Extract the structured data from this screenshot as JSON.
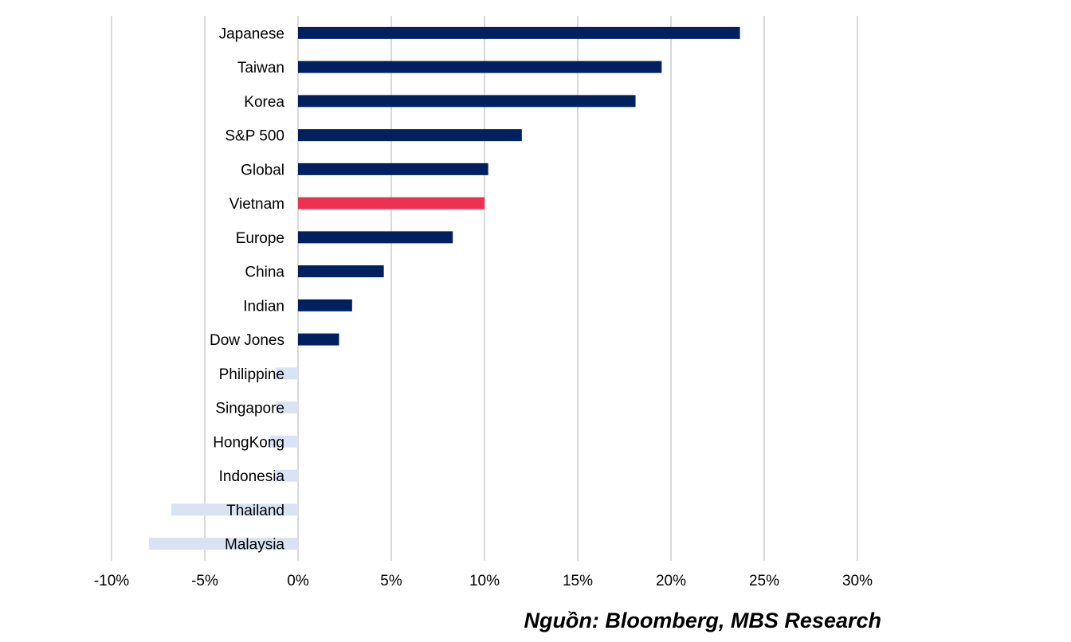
{
  "chart_data": {
    "type": "bar",
    "orientation": "horizontal",
    "categories": [
      "Japanese",
      "Taiwan",
      "Korea",
      "S&P 500",
      "Global",
      "Vietnam",
      "Europe",
      "China",
      "Indian",
      "Dow Jones",
      "Philippine",
      "Singapore",
      "HongKong",
      "Indonesia",
      "Thailand",
      "Malaysia"
    ],
    "values": [
      23.7,
      19.5,
      18.1,
      12.0,
      10.2,
      10.0,
      8.3,
      4.6,
      2.9,
      2.2,
      -1.2,
      -1.2,
      -1.5,
      -1.2,
      -6.8,
      -8.0
    ],
    "xlim": [
      -10,
      30
    ],
    "xticks": [
      -10,
      -5,
      0,
      5,
      10,
      15,
      20,
      25,
      30
    ],
    "xtick_labels": [
      "-10%",
      "-5%",
      "0%",
      "5%",
      "10%",
      "15%",
      "20%",
      "25%",
      "30%"
    ],
    "grid": "vertical",
    "colors": {
      "positive": "#002060",
      "highlight": "#ee3152",
      "negative": "#dae3f3",
      "grid": "#d9d9d9"
    },
    "highlight_category": "Vietnam"
  },
  "source": "Nguồn: Bloomberg, MBS Research"
}
